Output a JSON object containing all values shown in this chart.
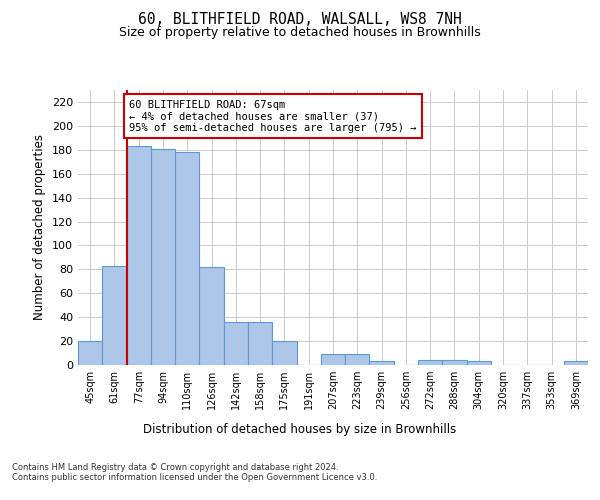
{
  "title1": "60, BLITHFIELD ROAD, WALSALL, WS8 7NH",
  "title2": "Size of property relative to detached houses in Brownhills",
  "xlabel": "Distribution of detached houses by size in Brownhills",
  "ylabel": "Number of detached properties",
  "categories": [
    "45sqm",
    "61sqm",
    "77sqm",
    "94sqm",
    "110sqm",
    "126sqm",
    "142sqm",
    "158sqm",
    "175sqm",
    "191sqm",
    "207sqm",
    "223sqm",
    "239sqm",
    "256sqm",
    "272sqm",
    "288sqm",
    "304sqm",
    "320sqm",
    "337sqm",
    "353sqm",
    "369sqm"
  ],
  "values": [
    20,
    83,
    183,
    181,
    178,
    82,
    36,
    36,
    20,
    0,
    9,
    9,
    3,
    0,
    4,
    4,
    3,
    0,
    0,
    0,
    3
  ],
  "bar_color": "#aec6e8",
  "bar_edge_color": "#5b9bd5",
  "vline_color": "#cc0000",
  "annotation_text": "60 BLITHFIELD ROAD: 67sqm\n← 4% of detached houses are smaller (37)\n95% of semi-detached houses are larger (795) →",
  "annotation_box_color": "#cc0000",
  "ylim": [
    0,
    230
  ],
  "yticks": [
    0,
    20,
    40,
    60,
    80,
    100,
    120,
    140,
    160,
    180,
    200,
    220
  ],
  "footer_text": "Contains HM Land Registry data © Crown copyright and database right 2024.\nContains public sector information licensed under the Open Government Licence v3.0.",
  "bg_color": "#ffffff",
  "grid_color": "#cccccc"
}
